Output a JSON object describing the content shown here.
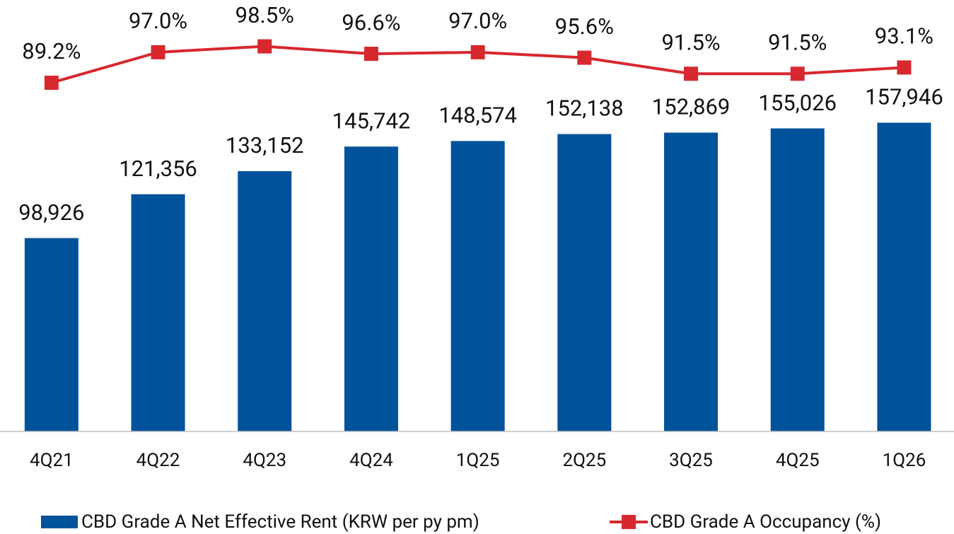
{
  "chart_data": {
    "type": "bar",
    "categories": [
      "4Q21",
      "4Q22",
      "4Q23",
      "4Q24",
      "1Q25",
      "2Q25",
      "3Q25",
      "4Q25",
      "1Q26"
    ],
    "series": [
      {
        "name": "CBD Grade A Net Effective Rent (KRW per py pm)",
        "type": "bar",
        "color": "#00529b",
        "values": [
          98926,
          121356,
          133152,
          145742,
          148574,
          152138,
          152869,
          155026,
          157946
        ],
        "value_labels": [
          "98,926",
          "121,356",
          "133,152",
          "145,742",
          "148,574",
          "152,138",
          "152,869",
          "155,026",
          "157,946"
        ]
      },
      {
        "name": "CBD Grade A Occupancy (%)",
        "type": "line",
        "axis": "y2",
        "color": "#d7282f",
        "values": [
          89.2,
          97.0,
          98.5,
          96.6,
          97.0,
          95.6,
          91.5,
          91.5,
          93.1
        ],
        "value_labels": [
          "89.2%",
          "97.0%",
          "98.5%",
          "96.6%",
          "97.0%",
          "95.6%",
          "91.5%",
          "91.5%",
          "93.1%"
        ]
      }
    ],
    "ylim": [
      0,
      220000
    ],
    "y2lim": [
      0,
      110
    ],
    "grid": false,
    "legend": "bottom"
  }
}
